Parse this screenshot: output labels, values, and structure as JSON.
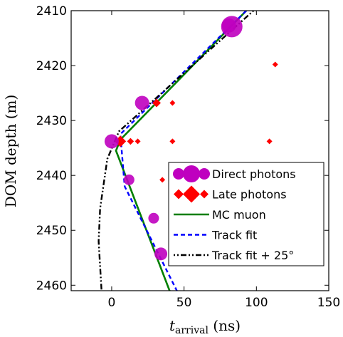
{
  "chart_data": {
    "type": "scatter",
    "xlabel_main": "t",
    "xlabel_sub": "arrival",
    "xlabel_unit": " (ns)",
    "ylabel": "DOM depth (m)",
    "xlim": [
      -28,
      150
    ],
    "ylim": [
      2410,
      2461
    ],
    "y_inverted": true,
    "xticks": [
      0,
      50,
      100,
      150
    ],
    "yticks": [
      2410,
      2420,
      2430,
      2440,
      2450,
      2460
    ],
    "legend_position": "lower-right",
    "colors": {
      "direct": "#bf00bf",
      "late": "#ff0000",
      "mc": "#007f00",
      "track": "#0000ff",
      "track25": "#000000"
    },
    "series": [
      {
        "name": "Direct photons",
        "kind": "scatter",
        "marker": "circle",
        "points": [
          {
            "x": 83,
            "y": 2412.9,
            "size": 3
          },
          {
            "x": 81,
            "y": 2412.7,
            "size": 2
          },
          {
            "x": 21,
            "y": 2426.8,
            "size": 2
          },
          {
            "x": 0,
            "y": 2433.8,
            "size": 2
          },
          {
            "x": 12,
            "y": 2440.8,
            "size": 1.5
          },
          {
            "x": 29,
            "y": 2447.8,
            "size": 1.5
          },
          {
            "x": 34,
            "y": 2454.3,
            "size": 1.8
          }
        ]
      },
      {
        "name": "Late photons",
        "kind": "scatter",
        "marker": "diamond",
        "points": [
          {
            "x": 113,
            "y": 2419.8,
            "size": 1
          },
          {
            "x": 31,
            "y": 2426.8,
            "size": 1.5
          },
          {
            "x": 42,
            "y": 2426.8,
            "size": 1
          },
          {
            "x": 6,
            "y": 2433.8,
            "size": 2
          },
          {
            "x": 13,
            "y": 2433.8,
            "size": 1.2
          },
          {
            "x": 18,
            "y": 2433.8,
            "size": 1
          },
          {
            "x": 42,
            "y": 2433.8,
            "size": 1
          },
          {
            "x": 109,
            "y": 2433.8,
            "size": 1
          },
          {
            "x": 35,
            "y": 2440.8,
            "size": 1
          }
        ]
      },
      {
        "name": "MC muon",
        "kind": "line",
        "style": "solid",
        "points": [
          [
            93,
            2410
          ],
          [
            6,
            2433.5
          ],
          [
            3,
            2435.5
          ],
          [
            40,
            2461
          ]
        ]
      },
      {
        "name": "Track fit",
        "kind": "line",
        "style": "dashed",
        "points": [
          [
            93,
            2410
          ],
          [
            6,
            2432.5
          ],
          [
            9,
            2442
          ],
          [
            45,
            2461
          ]
        ]
      },
      {
        "name": "Track fit + 25°",
        "kind": "line",
        "style": "dashdot",
        "points": [
          [
            98,
            2410
          ],
          [
            5,
            2432
          ],
          [
            -3,
            2437
          ],
          [
            -8,
            2446
          ],
          [
            -9,
            2452
          ],
          [
            -7,
            2461
          ]
        ]
      }
    ]
  }
}
